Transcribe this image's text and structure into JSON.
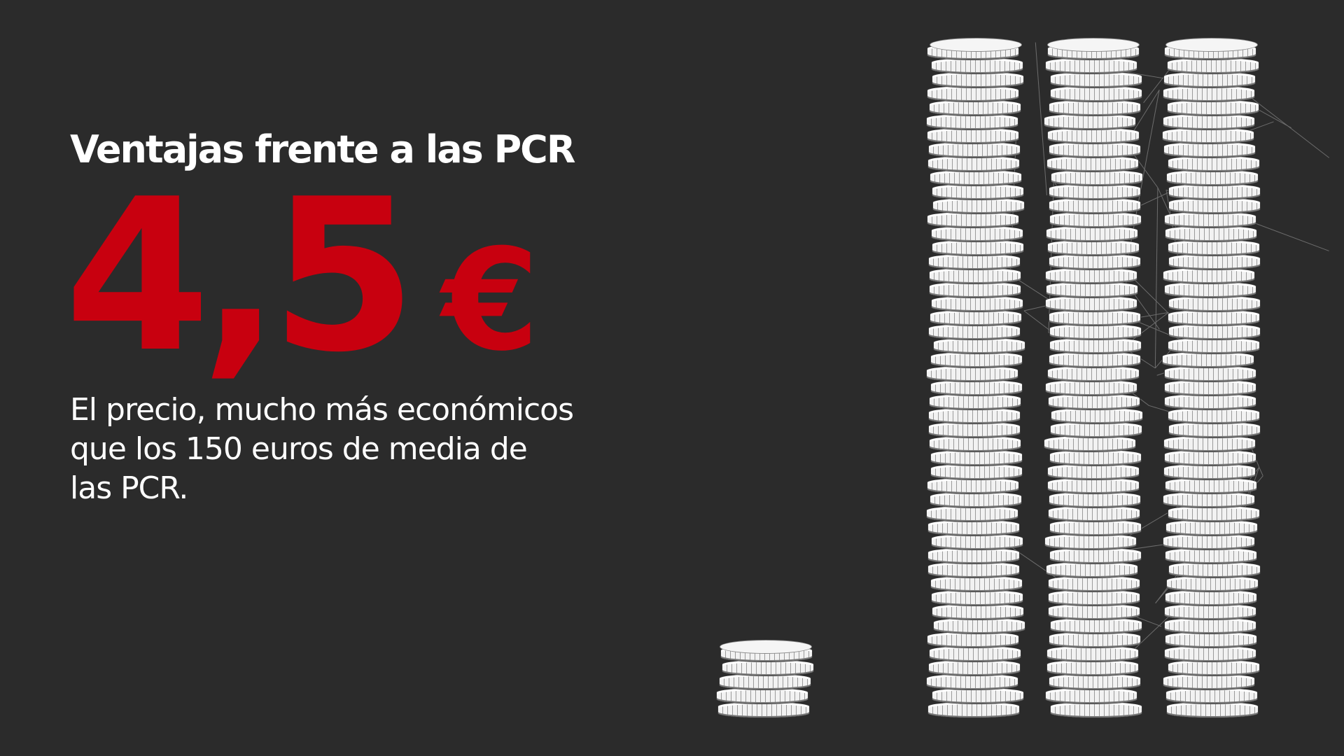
{
  "heading": "Ventajas frente a las PCR",
  "price": {
    "value": "4,5",
    "currency": "€",
    "color": "#c8000f"
  },
  "description": "El precio, mucho más económicos que los 150 euros de media de las PCR.",
  "illustration": {
    "icon": "coin-stacks-icon",
    "background": "virus-mesh-icon"
  }
}
